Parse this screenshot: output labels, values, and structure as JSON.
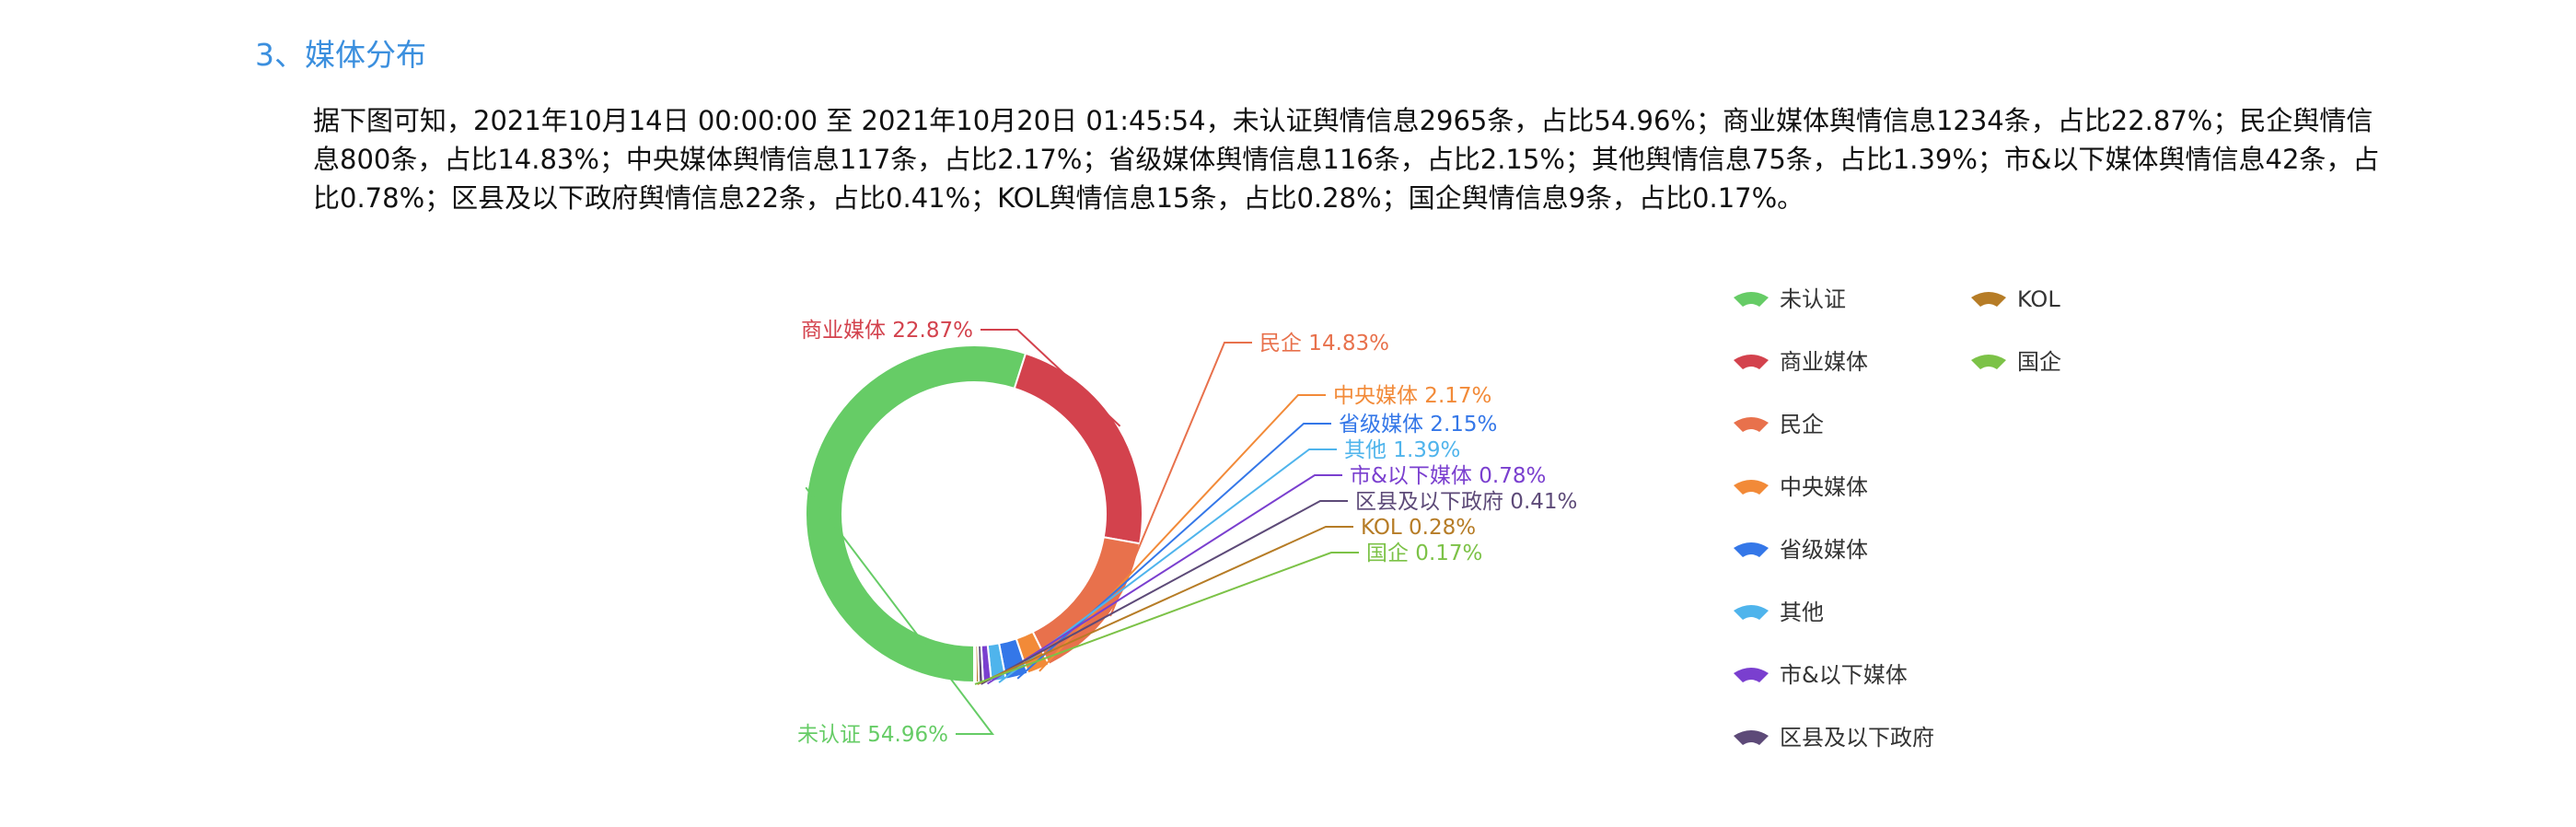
{
  "section": {
    "title": "3、媒体分布"
  },
  "summary": {
    "text": "据下图可知，2021年10月14日 00:00:00 至 2021年10月20日 01:45:54，未认证舆情信息2965条，占比54.96%；商业媒体舆情信息1234条，占比22.87%；民企舆情信息800条，占比14.83%；中央媒体舆情信息117条，占比2.17%；省级媒体舆情信息116条，占比2.15%；其他舆情信息75条，占比1.39%；市&以下媒体舆情信息42条，占比0.78%；区县及以下政府舆情信息22条，占比0.41%；KOL舆情信息15条，占比0.28%；国企舆情信息9条，占比0.17%。"
  },
  "chart_data": {
    "type": "pie",
    "variant": "donut",
    "legend_position": "right",
    "series": [
      {
        "name": "未认证",
        "count": 2965,
        "value": 54.96,
        "label": "未认证 54.96%",
        "color": "#66cc66"
      },
      {
        "name": "商业媒体",
        "count": 1234,
        "value": 22.87,
        "label": "商业媒体 22.87%",
        "color": "#d3424d"
      },
      {
        "name": "民企",
        "count": 800,
        "value": 14.83,
        "label": "民企 14.83%",
        "color": "#e8714c"
      },
      {
        "name": "中央媒体",
        "count": 117,
        "value": 2.17,
        "label": "中央媒体 2.17%",
        "color": "#f28a38"
      },
      {
        "name": "省级媒体",
        "count": 116,
        "value": 2.15,
        "label": "省级媒体 2.15%",
        "color": "#3477e8"
      },
      {
        "name": "其他",
        "count": 75,
        "value": 1.39,
        "label": "其他 1.39%",
        "color": "#4fb4ec"
      },
      {
        "name": "市&以下媒体",
        "count": 42,
        "value": 0.78,
        "label": "市&以下媒体 0.78%",
        "color": "#7a3fcf"
      },
      {
        "name": "区县及以下政府",
        "count": 22,
        "value": 0.41,
        "label": "区县及以下政府 0.41%",
        "color": "#5d4a78"
      },
      {
        "name": "KOL",
        "count": 15,
        "value": 0.28,
        "label": "KOL 0.28%",
        "color": "#b67c26"
      },
      {
        "name": "国企",
        "count": 9,
        "value": 0.17,
        "label": "国企 0.17%",
        "color": "#7cc247"
      }
    ]
  }
}
